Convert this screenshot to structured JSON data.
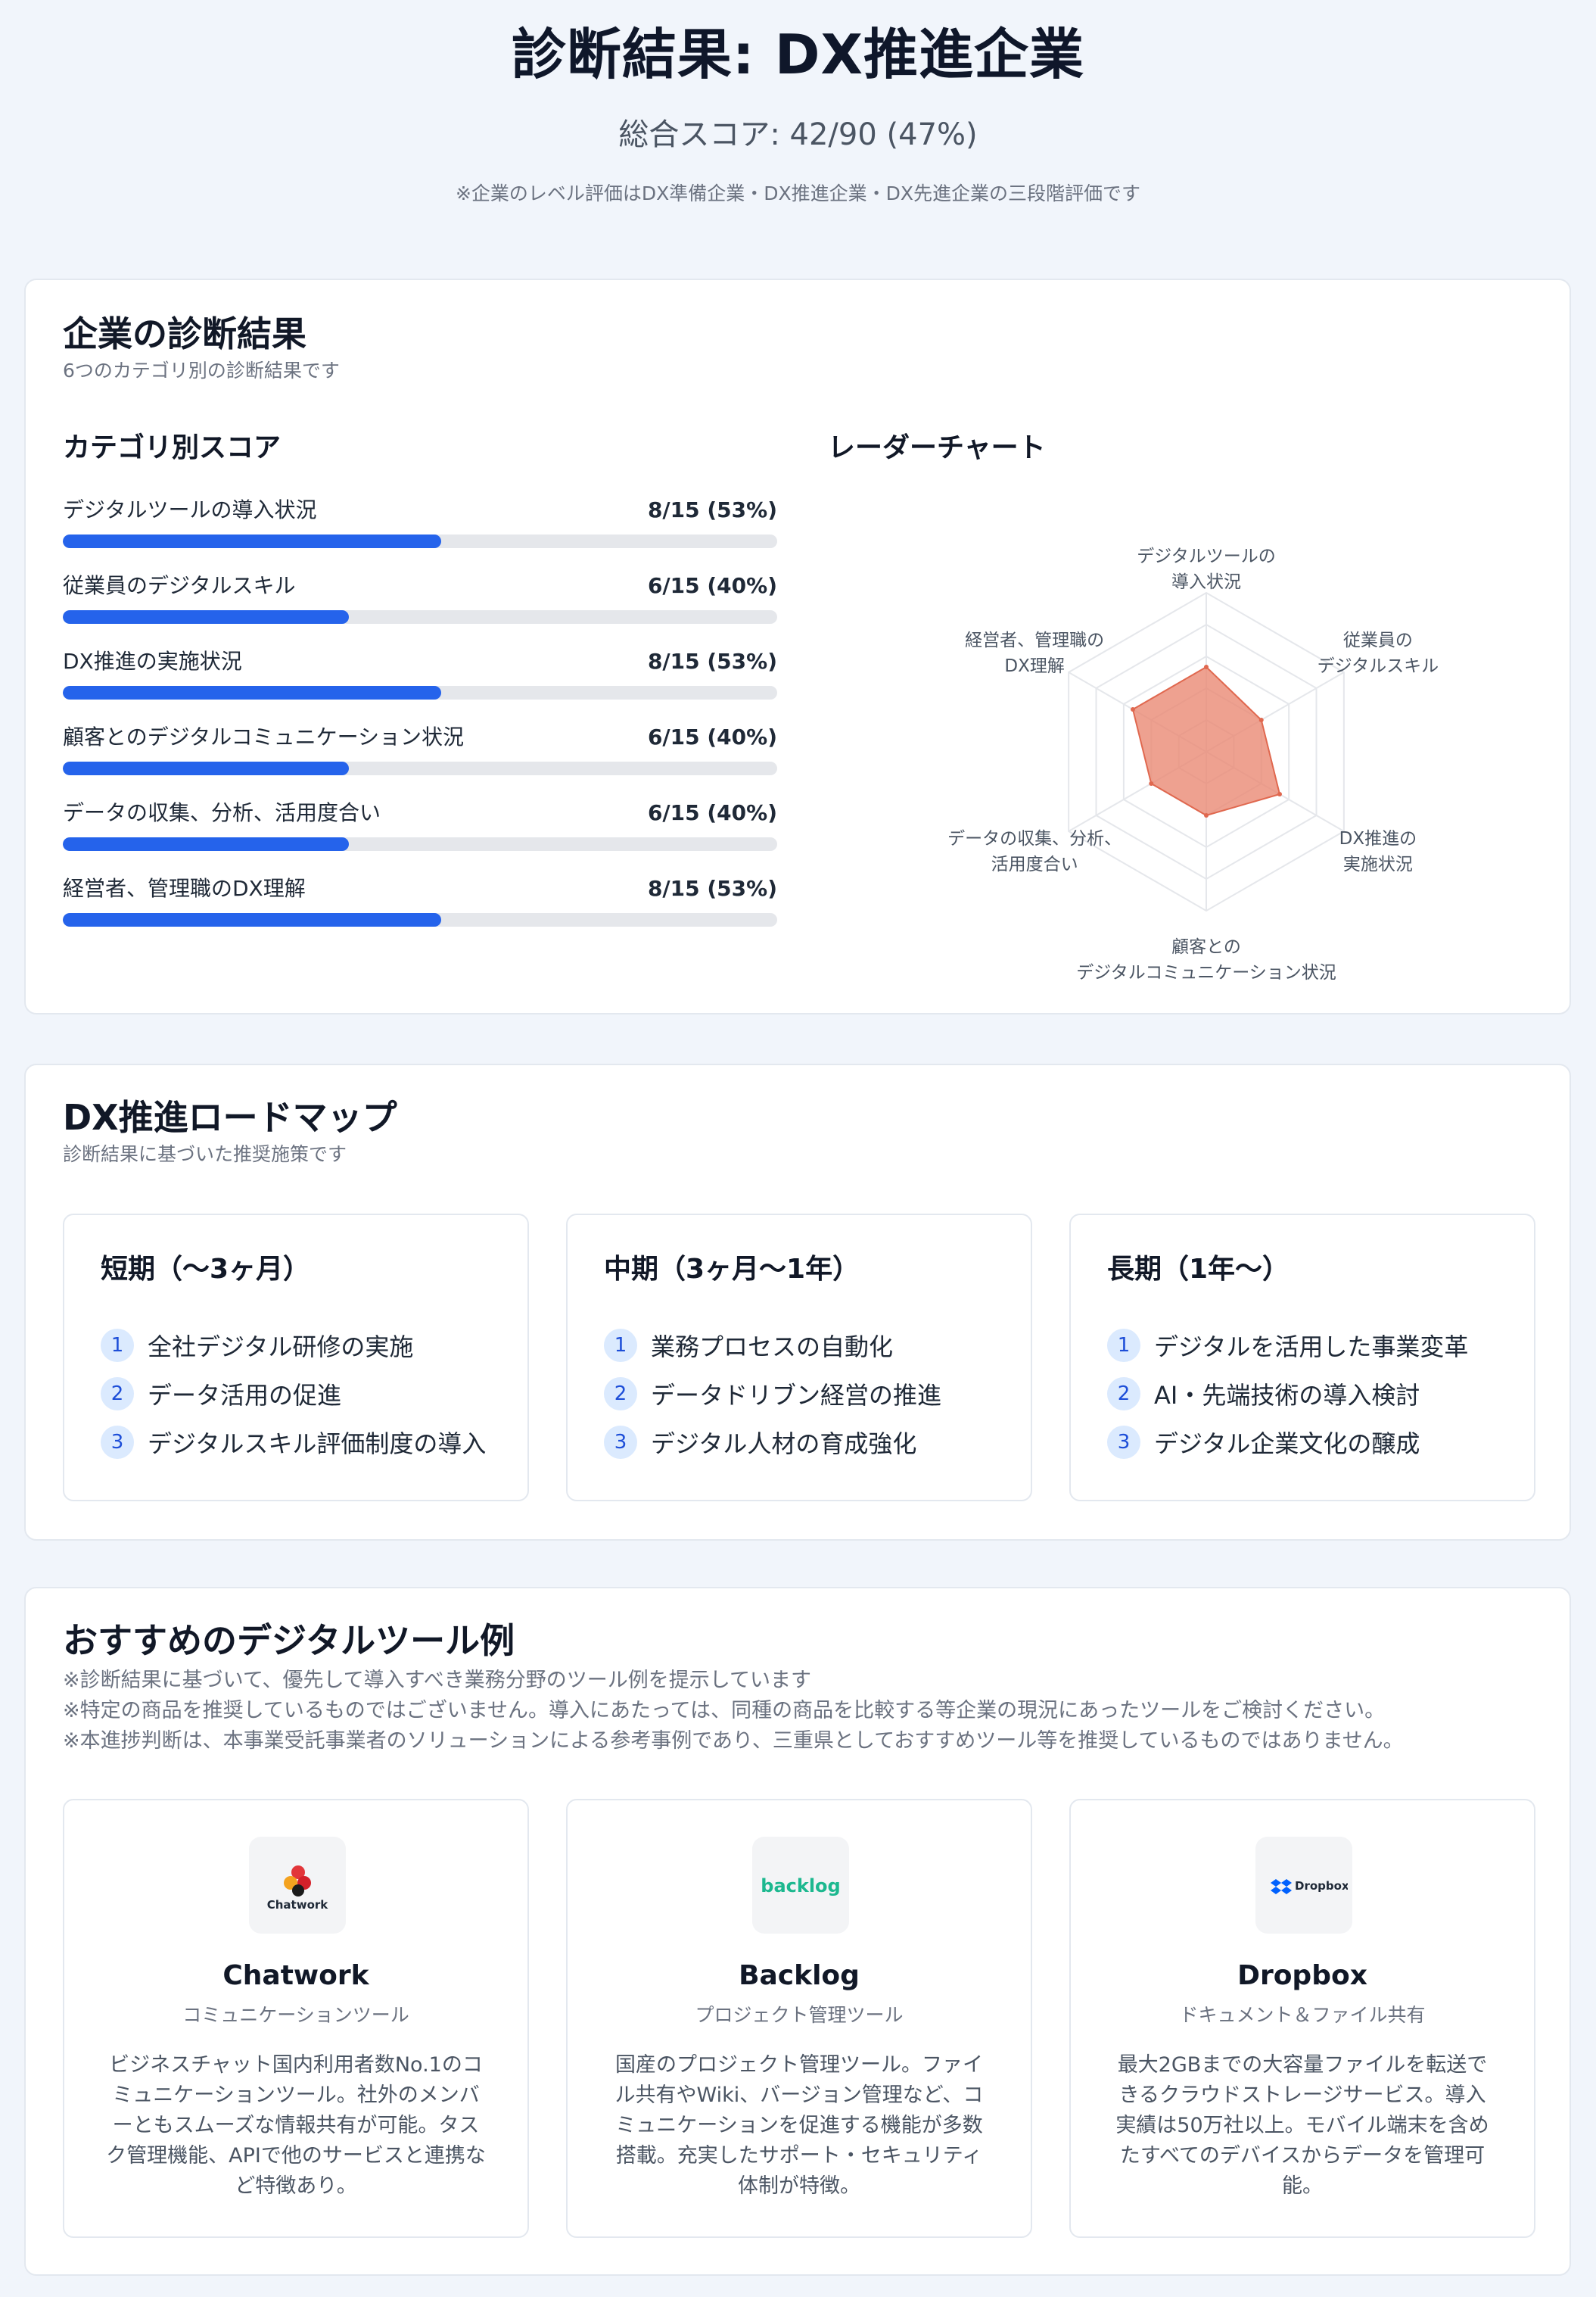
{
  "header": {
    "title": "診断結果: DX推進企業",
    "score": "総合スコア: 42/90 (47%)",
    "note": "※企業のレベル評価はDX準備企業・DX推進企業・DX先進企業の三段階評価です"
  },
  "diagnosis": {
    "title": "企業の診断結果",
    "subtitle": "6つのカテゴリ別の診断結果です",
    "scores_title": "カテゴリ別スコア",
    "radar_title": "レーダーチャート",
    "categories": [
      {
        "label": "デジタルツールの導入状況",
        "value": "8/15 (53%)",
        "fraction": 0.53
      },
      {
        "label": "従業員のデジタルスキル",
        "value": "6/15 (40%)",
        "fraction": 0.4
      },
      {
        "label": "DX推進の実施状況",
        "value": "8/15 (53%)",
        "fraction": 0.53
      },
      {
        "label": "顧客とのデジタルコミュニケーション状況",
        "value": "6/15 (40%)",
        "fraction": 0.4
      },
      {
        "label": "データの収集、分析、活用度合い",
        "value": "6/15 (40%)",
        "fraction": 0.4
      },
      {
        "label": "経営者、管理職のDX理解",
        "value": "8/15 (53%)",
        "fraction": 0.53
      }
    ]
  },
  "chart_data": {
    "type": "radar",
    "axes": [
      [
        "デジタルツールの",
        "導入状況"
      ],
      [
        "従業員の",
        "デジタルスキル"
      ],
      [
        "DX推進の",
        "実施状況"
      ],
      [
        "顧客との",
        "デジタルコミュニケーション状況"
      ],
      [
        "データの収集、分析、",
        "活用度合い"
      ],
      [
        "経営者、管理職の",
        "DX理解"
      ]
    ],
    "values": [
      8,
      6,
      8,
      6,
      6,
      8
    ],
    "max": 15,
    "grid_levels": 5,
    "fill_color": "#ea8a74",
    "stroke_color": "#e0684f"
  },
  "roadmap": {
    "title": "DX推進ロードマップ",
    "subtitle": "診断結果に基づいた推奨施策です",
    "terms": [
      {
        "title": "短期（〜3ヶ月）",
        "items": [
          "全社デジタル研修の実施",
          "データ活用の促進",
          "デジタルスキル評価制度の導入"
        ]
      },
      {
        "title": "中期（3ヶ月〜1年）",
        "items": [
          "業務プロセスの自動化",
          "データドリブン経営の推進",
          "デジタル人材の育成強化"
        ]
      },
      {
        "title": "長期（1年〜）",
        "items": [
          "デジタルを活用した事業変革",
          "AI・先端技術の導入検討",
          "デジタル企業文化の醸成"
        ]
      }
    ],
    "numbers": [
      "1",
      "2",
      "3"
    ]
  },
  "tools": {
    "title": "おすすめのデジタルツール例",
    "notes": [
      "※診断結果に基づいて、優先して導入すべき業務分野のツール例を提示しています",
      "※特定の商品を推奨しているものではございません。導入にあたっては、同種の商品を比較する等企業の現況にあったツールをご検討ください。",
      "※本進捗判断は、本事業受託事業者のソリューションによる参考事例であり、三重県としておすすめツール等を推奨しているものではありません。"
    ],
    "items": [
      {
        "name": "Chatwork",
        "logo_text": "Chatwork",
        "category": "コミュニケーションツール",
        "description": "ビジネスチャット国内利用者数No.1のコミュニケーションツール。社外のメンバーともスムーズな情報共有が可能。タスク管理機能、APIで他のサービスと連携など特徴あり。"
      },
      {
        "name": "Backlog",
        "logo_text": "backlog",
        "category": "プロジェクト管理ツール",
        "description": "国産のプロジェクト管理ツール。ファイル共有やWiki、バージョン管理など、コミュニケーションを促進する機能が多数搭載。充実したサポート・セキュリティ体制が特徴。"
      },
      {
        "name": "Dropbox",
        "logo_text": "Dropbox",
        "category": "ドキュメント＆ファイル共有",
        "description": "最大2GBまでの大容量ファイルを転送できるクラウドストレージサービス。導入実績は50万社以上。モバイル端末を含めたすべてのデバイスからデータを管理可能。"
      }
    ]
  }
}
